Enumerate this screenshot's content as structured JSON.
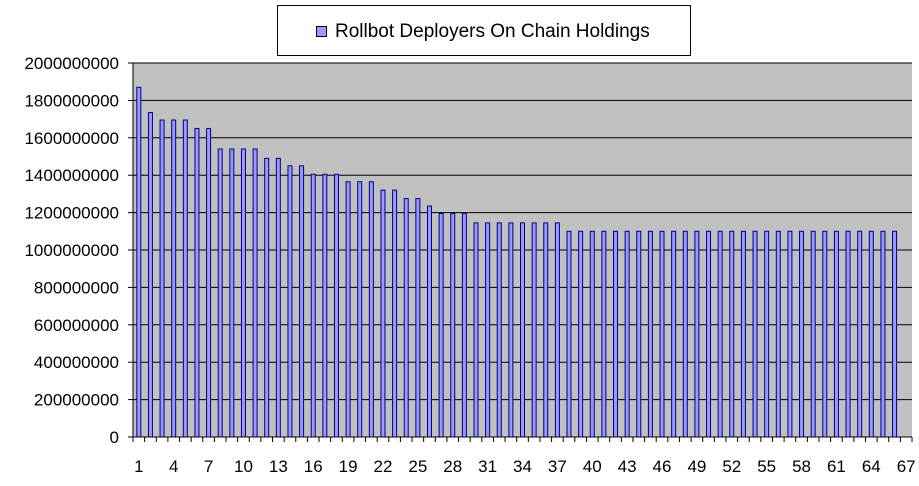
{
  "chart_data": {
    "type": "bar",
    "title": "",
    "xlabel": "",
    "ylabel": "",
    "legend": {
      "position": "top-center",
      "entries": [
        "Rollbot Deployers On Chain Holdings"
      ]
    },
    "ylim": [
      0,
      2000000000
    ],
    "y_ticks": [
      0,
      200000000,
      400000000,
      600000000,
      800000000,
      1000000000,
      1200000000,
      1400000000,
      1600000000,
      1800000000,
      2000000000
    ],
    "x_tick_labels": [
      "1",
      "4",
      "7",
      "10",
      "13",
      "16",
      "19",
      "22",
      "25",
      "28",
      "31",
      "34",
      "37",
      "40",
      "43",
      "46",
      "49",
      "52",
      "55",
      "58",
      "61",
      "64",
      "67"
    ],
    "grid": true,
    "categories": [
      "1",
      "2",
      "3",
      "4",
      "5",
      "6",
      "7",
      "8",
      "9",
      "10",
      "11",
      "12",
      "13",
      "14",
      "15",
      "16",
      "17",
      "18",
      "19",
      "20",
      "21",
      "22",
      "23",
      "24",
      "25",
      "26",
      "27",
      "28",
      "29",
      "30",
      "31",
      "32",
      "33",
      "34",
      "35",
      "36",
      "37",
      "38",
      "39",
      "40",
      "41",
      "42",
      "43",
      "44",
      "45",
      "46",
      "47",
      "48",
      "49",
      "50",
      "51",
      "52",
      "53",
      "54",
      "55",
      "56",
      "57",
      "58",
      "59",
      "60",
      "61",
      "62",
      "63",
      "64",
      "65",
      "66"
    ],
    "series": [
      {
        "name": "Rollbot Deployers On Chain Holdings",
        "values": [
          1870000000,
          1735000000,
          1695000000,
          1695000000,
          1695000000,
          1650000000,
          1650000000,
          1540000000,
          1540000000,
          1540000000,
          1540000000,
          1490000000,
          1490000000,
          1450000000,
          1450000000,
          1405000000,
          1405000000,
          1405000000,
          1365000000,
          1365000000,
          1365000000,
          1320000000,
          1320000000,
          1275000000,
          1275000000,
          1235000000,
          1195000000,
          1195000000,
          1195000000,
          1145000000,
          1145000000,
          1145000000,
          1145000000,
          1145000000,
          1145000000,
          1145000000,
          1145000000,
          1100000000,
          1100000000,
          1100000000,
          1100000000,
          1100000000,
          1100000000,
          1100000000,
          1100000000,
          1100000000,
          1100000000,
          1100000000,
          1100000000,
          1100000000,
          1100000000,
          1100000000,
          1100000000,
          1100000000,
          1100000000,
          1100000000,
          1100000000,
          1100000000,
          1100000000,
          1100000000,
          1100000000,
          1100000000,
          1100000000,
          1100000000,
          1100000000,
          1100000000
        ]
      }
    ],
    "colors": {
      "plot_background": "#c0c0c0",
      "bar_fill": "#9999ff",
      "bar_stroke": "#000080",
      "grid": "#000000"
    }
  }
}
